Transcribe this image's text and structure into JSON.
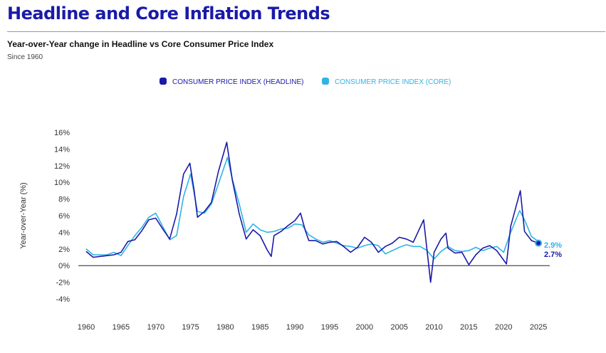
{
  "header": {
    "title": "Headline and Core Inflation Trends",
    "subtitle": "Year-over-Year change in Headline vs Core Consumer Price Index",
    "since": "Since 1960"
  },
  "chart_data": {
    "type": "line",
    "title": "Headline and Core Inflation Trends",
    "subtitle": "Year-over-Year change in Headline vs Core Consumer Price Index",
    "xlabel": "",
    "ylabel": "Year-over-Year (%)",
    "xlim": [
      1960,
      2025.6
    ],
    "ylim": [
      -4,
      16
    ],
    "x_ticks": [
      1960,
      1965,
      1970,
      1975,
      1980,
      1985,
      1990,
      1995,
      2000,
      2005,
      2010,
      2015,
      2020,
      2025
    ],
    "y_ticks": [
      -4,
      -2,
      0,
      2,
      4,
      6,
      8,
      10,
      12,
      14,
      16
    ],
    "y_tick_suffix": "%",
    "grid": false,
    "legend_position": "top-center",
    "series": [
      {
        "name": "CONSUMER PRICE INDEX (HEADLINE)",
        "color": "#1a1aa8",
        "end_label": "2.7%",
        "points": [
          [
            1960,
            1.7
          ],
          [
            1961,
            1.0
          ],
          [
            1962,
            1.1
          ],
          [
            1963,
            1.2
          ],
          [
            1964,
            1.3
          ],
          [
            1965,
            1.6
          ],
          [
            1966,
            2.9
          ],
          [
            1967,
            3.1
          ],
          [
            1968,
            4.2
          ],
          [
            1969,
            5.5
          ],
          [
            1970,
            5.7
          ],
          [
            1971,
            4.4
          ],
          [
            1972,
            3.2
          ],
          [
            1973,
            6.2
          ],
          [
            1974,
            11.0
          ],
          [
            1974.9,
            12.3
          ],
          [
            1975.5,
            9.1
          ],
          [
            1976,
            5.8
          ],
          [
            1977,
            6.5
          ],
          [
            1978,
            7.6
          ],
          [
            1979,
            11.3
          ],
          [
            1980.2,
            14.8
          ],
          [
            1981,
            10.3
          ],
          [
            1982,
            6.2
          ],
          [
            1983,
            3.2
          ],
          [
            1984,
            4.3
          ],
          [
            1985,
            3.6
          ],
          [
            1986,
            1.9
          ],
          [
            1986.6,
            1.1
          ],
          [
            1987,
            3.6
          ],
          [
            1988,
            4.1
          ],
          [
            1989,
            4.8
          ],
          [
            1990,
            5.4
          ],
          [
            1990.8,
            6.3
          ],
          [
            1991.5,
            4.2
          ],
          [
            1992,
            3.0
          ],
          [
            1993,
            3.0
          ],
          [
            1994,
            2.6
          ],
          [
            1995,
            2.8
          ],
          [
            1996,
            2.9
          ],
          [
            1997,
            2.3
          ],
          [
            1998,
            1.6
          ],
          [
            1999,
            2.2
          ],
          [
            2000,
            3.4
          ],
          [
            2001,
            2.8
          ],
          [
            2002,
            1.6
          ],
          [
            2003,
            2.3
          ],
          [
            2004,
            2.7
          ],
          [
            2005,
            3.4
          ],
          [
            2006,
            3.2
          ],
          [
            2007,
            2.8
          ],
          [
            2008.5,
            5.5
          ],
          [
            2009.5,
            -2.0
          ],
          [
            2010,
            1.6
          ],
          [
            2011,
            3.2
          ],
          [
            2011.7,
            3.9
          ],
          [
            2012,
            2.1
          ],
          [
            2013,
            1.5
          ],
          [
            2014,
            1.6
          ],
          [
            2015,
            0.1
          ],
          [
            2016,
            1.3
          ],
          [
            2017,
            2.1
          ],
          [
            2018,
            2.4
          ],
          [
            2019,
            1.8
          ],
          [
            2020.4,
            0.2
          ],
          [
            2021,
            4.7
          ],
          [
            2022.4,
            9.0
          ],
          [
            2023,
            4.1
          ],
          [
            2024,
            3.0
          ],
          [
            2025,
            2.7
          ]
        ]
      },
      {
        "name": "CONSUMER PRICE INDEX (CORE)",
        "color": "#31b3e6",
        "end_label": "2.9%",
        "points": [
          [
            1960,
            2.0
          ],
          [
            1961,
            1.3
          ],
          [
            1962,
            1.3
          ],
          [
            1963,
            1.3
          ],
          [
            1964,
            1.6
          ],
          [
            1965,
            1.2
          ],
          [
            1966,
            2.4
          ],
          [
            1967,
            3.6
          ],
          [
            1968,
            4.6
          ],
          [
            1969,
            5.8
          ],
          [
            1970,
            6.3
          ],
          [
            1971,
            4.7
          ],
          [
            1972,
            3.1
          ],
          [
            1973,
            3.6
          ],
          [
            1974,
            8.3
          ],
          [
            1975,
            11.0
          ],
          [
            1976,
            6.5
          ],
          [
            1977,
            6.3
          ],
          [
            1978,
            7.4
          ],
          [
            1979,
            9.8
          ],
          [
            1980.3,
            13.0
          ],
          [
            1981,
            10.4
          ],
          [
            1982,
            7.4
          ],
          [
            1983,
            4.0
          ],
          [
            1984,
            5.0
          ],
          [
            1985,
            4.3
          ],
          [
            1986,
            4.0
          ],
          [
            1987,
            4.1
          ],
          [
            1988,
            4.4
          ],
          [
            1989,
            4.5
          ],
          [
            1990,
            5.0
          ],
          [
            1991,
            4.9
          ],
          [
            1992,
            3.7
          ],
          [
            1993,
            3.2
          ],
          [
            1994,
            2.8
          ],
          [
            1995,
            3.0
          ],
          [
            1996,
            2.7
          ],
          [
            1997,
            2.4
          ],
          [
            1998,
            2.3
          ],
          [
            1999,
            2.1
          ],
          [
            2000,
            2.4
          ],
          [
            2001,
            2.6
          ],
          [
            2002,
            2.4
          ],
          [
            2003,
            1.4
          ],
          [
            2004,
            1.8
          ],
          [
            2005,
            2.2
          ],
          [
            2006,
            2.5
          ],
          [
            2007,
            2.3
          ],
          [
            2008,
            2.3
          ],
          [
            2009,
            1.8
          ],
          [
            2010,
            0.8
          ],
          [
            2011,
            1.7
          ],
          [
            2012,
            2.3
          ],
          [
            2013,
            1.8
          ],
          [
            2014,
            1.7
          ],
          [
            2015,
            1.8
          ],
          [
            2016,
            2.2
          ],
          [
            2017,
            1.8
          ],
          [
            2018,
            2.1
          ],
          [
            2019,
            2.3
          ],
          [
            2020,
            1.6
          ],
          [
            2021,
            4.0
          ],
          [
            2022.3,
            6.6
          ],
          [
            2023,
            5.5
          ],
          [
            2024,
            3.5
          ],
          [
            2025,
            2.9
          ]
        ]
      }
    ]
  }
}
